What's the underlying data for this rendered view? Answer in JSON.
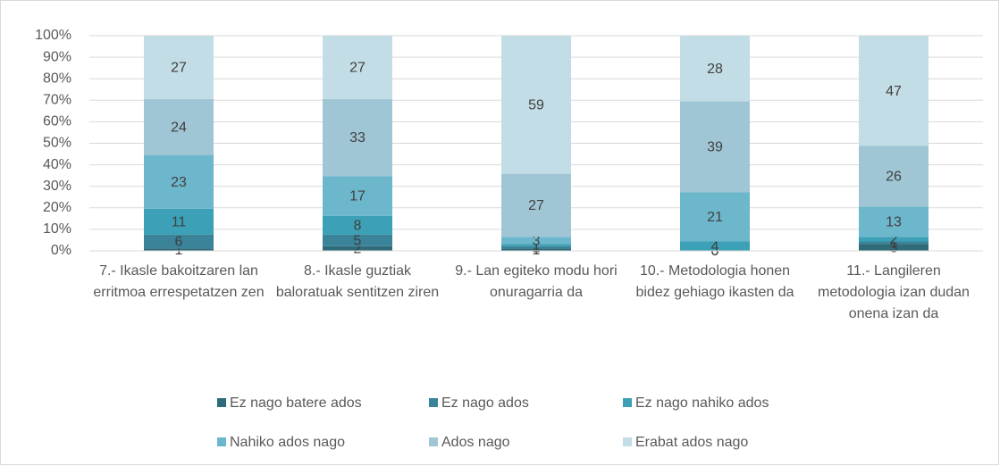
{
  "chart_data": {
    "type": "stacked_percent_bar",
    "categories": [
      "7.- Ikasle bakoitzaren lan erritmoa errespetatzen zen",
      "8.- Ikasle guztiak baloratuak sentitzen ziren",
      "9.- Lan egiteko modu hori onuragarria da",
      "10.- Metodologia honen bidez gehiago ikasten da",
      "11.- Langileren metodologia izan dudan onena izan da"
    ],
    "series": [
      {
        "name": "Ez nago batere ados",
        "color": "#2f6b78",
        "values": [
          1,
          2,
          1,
          0,
          3
        ]
      },
      {
        "name": "Ez nago ados",
        "color": "#3a8399",
        "values": [
          6,
          5,
          1,
          0,
          1
        ]
      },
      {
        "name": "Ez nago nahiko ados",
        "color": "#3ca0b6",
        "values": [
          11,
          8,
          1,
          4,
          2
        ]
      },
      {
        "name": "Nahiko ados nago",
        "color": "#6db7cc",
        "values": [
          23,
          17,
          3,
          21,
          13
        ]
      },
      {
        "name": "Ados nago",
        "color": "#a0c6d6",
        "values": [
          24,
          33,
          27,
          39,
          26
        ]
      },
      {
        "name": "Erabat ados nago",
        "color": "#c3dde6",
        "values": [
          27,
          27,
          59,
          28,
          47
        ]
      }
    ],
    "ylim": [
      0,
      100
    ],
    "yticks": [
      {
        "value": 0,
        "label": "0%"
      },
      {
        "value": 10,
        "label": "10%"
      },
      {
        "value": 20,
        "label": "20%"
      },
      {
        "value": 30,
        "label": "30%"
      },
      {
        "value": 40,
        "label": "40%"
      },
      {
        "value": 50,
        "label": "50%"
      },
      {
        "value": 60,
        "label": "60%"
      },
      {
        "value": 70,
        "label": "70%"
      },
      {
        "value": 80,
        "label": "80%"
      },
      {
        "value": 90,
        "label": "90%"
      },
      {
        "value": 100,
        "label": "100%"
      }
    ],
    "legend": "bottom"
  }
}
